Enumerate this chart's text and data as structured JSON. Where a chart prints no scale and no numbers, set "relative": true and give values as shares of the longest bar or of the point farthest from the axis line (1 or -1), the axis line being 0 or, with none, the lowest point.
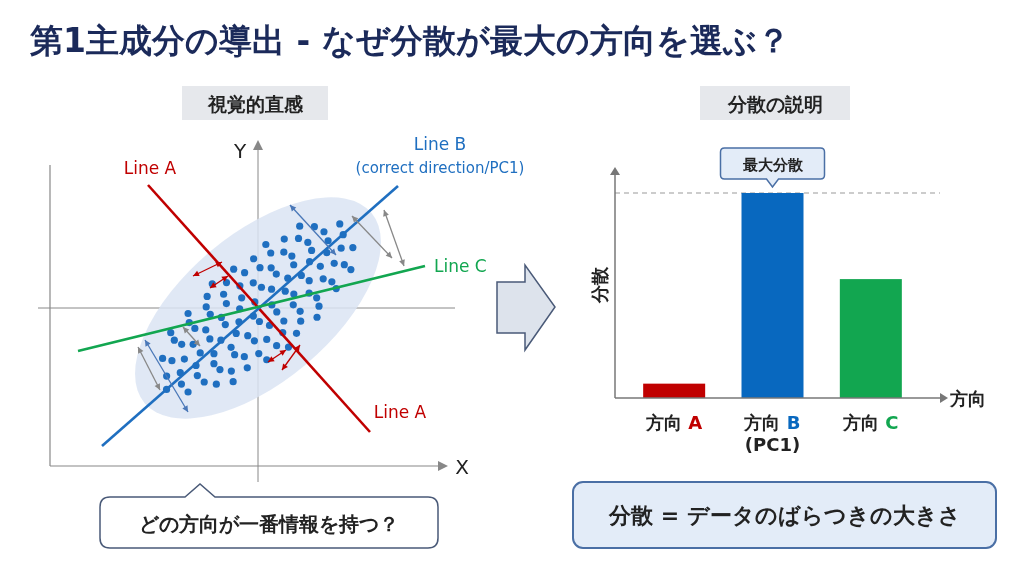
{
  "chart_data": [
    {
      "type": "other",
      "title": "第1主成分の導出 - なぜ分散が最大の方向を選ぶ？",
      "subtitle": "視覚的直感",
      "annotations": [
        "Y",
        "X",
        "Line A",
        "Line B",
        "(correct direction/PC1)",
        "Line C",
        "Line A",
        "どの方向が一番情報を持つ？"
      ]
    },
    {
      "type": "bar",
      "title": "分散の説明",
      "ylabel": "分散",
      "xlabel": "方向",
      "categories": [
        "方向 A",
        "方向 B (PC1)",
        "方向 C"
      ],
      "values": [
        0.07,
        1,
        0.58
      ],
      "colors": [
        "#c00000",
        "#0868bf",
        "#12a650"
      ],
      "relative": true,
      "ref_lines": [
        {
          "axis": "y",
          "value": 1,
          "color": "#999999",
          "line_style": "dashed"
        }
      ],
      "annotations": [
        {
          "text": "最大分散",
          "x": "方向 B (PC1)",
          "y": 1
        },
        "分散 = データのばらつきの大きさ"
      ]
    }
  ]
}
